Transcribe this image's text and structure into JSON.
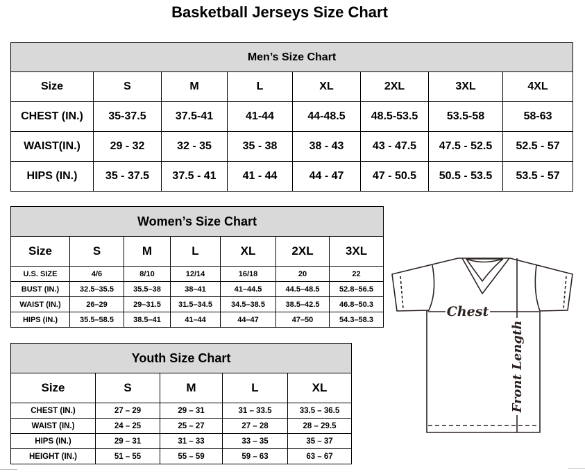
{
  "title": "Basketball Jerseys Size Chart",
  "men": {
    "caption": "Men’s Size Chart",
    "header": [
      "Size",
      "S",
      "M",
      "L",
      "XL",
      "2XL",
      "3XL",
      "4XL"
    ],
    "rows": [
      [
        "CHEST (IN.)",
        "35-37.5",
        "37.5-41",
        "41-44",
        "44-48.5",
        "48.5-53.5",
        "53.5-58",
        "58-63"
      ],
      [
        "WAIST(IN.)",
        "29 - 32",
        "32 - 35",
        "35 - 38",
        "38 - 43",
        "43 - 47.5",
        "47.5 - 52.5",
        "52.5 - 57"
      ],
      [
        "HIPS (IN.)",
        "35 - 37.5",
        "37.5 - 41",
        "41 - 44",
        "44 - 47",
        "47 - 50.5",
        "50.5 - 53.5",
        "53.5 - 57"
      ]
    ]
  },
  "women": {
    "caption": "Women’s Size Chart",
    "header": [
      "Size",
      "S",
      "M",
      "L",
      "XL",
      "2XL",
      "3XL"
    ],
    "rows": [
      [
        "U.S.  SIZE",
        "4/6",
        "8/10",
        "12/14",
        "16/18",
        "20",
        "22"
      ],
      [
        "BUST  (IN.)",
        "32.5–35.5",
        "35.5–38",
        "38–41",
        "41–44.5",
        "44.5–48.5",
        "52.8–56.5"
      ],
      [
        "WAIST  (IN.)",
        "26–29",
        "29–31.5",
        "31.5–34.5",
        "34.5–38.5",
        "38.5–42.5",
        "46.8–50.3"
      ],
      [
        "HIPS  (IN.)",
        "35.5–58.5",
        "38.5–41",
        "41–44",
        "44–47",
        "47–50",
        "54.3–58.3"
      ]
    ]
  },
  "youth": {
    "caption": "Youth Size Chart",
    "header": [
      "Size",
      "S",
      "M",
      "L",
      "XL"
    ],
    "rows": [
      [
        "CHEST  (IN.)",
        "27  –  29",
        "29  –  31",
        "31  –  33.5",
        "33.5  –  36.5"
      ],
      [
        "WAIST  (IN.)",
        "24  –  25",
        "25  –  27",
        "27  –  28",
        "28  –  29.5"
      ],
      [
        "HIPS  (IN.)",
        "29  –  31",
        "31  –  33",
        "33  –  35",
        "35  –  37"
      ],
      [
        "HEIGHT  (IN.)",
        "51  –  55",
        "55  –  59",
        "59  –  63",
        "63  –  67"
      ]
    ]
  },
  "diagram": {
    "chest_label": "Chest",
    "length_label": "Front Length",
    "line_color": "#2b2220"
  }
}
